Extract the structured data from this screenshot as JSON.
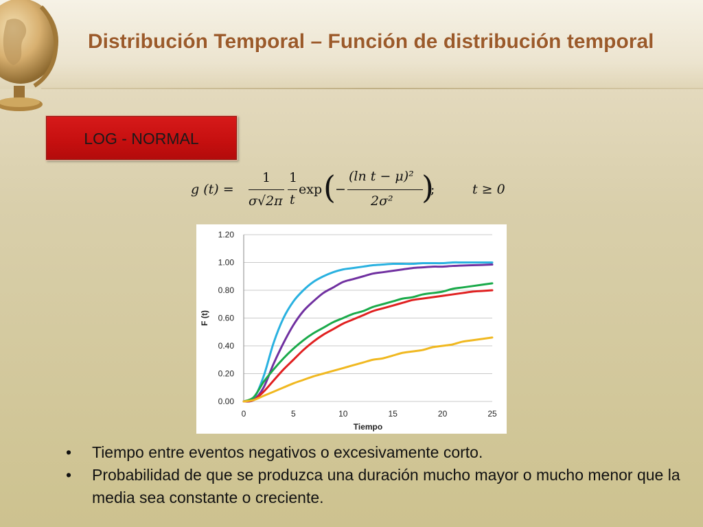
{
  "slide": {
    "title": "Distribución Temporal – Función de distribución temporal",
    "badge_label": "LOG - NORMAL",
    "formula": {
      "lhs": "g (t) =",
      "frac1_num": "1",
      "frac1_den": "σ√2π",
      "frac2_num": "1",
      "frac2_den": "t",
      "exp_label": "exp",
      "exp_num": "(ln t − μ)²",
      "exp_den": "2σ²",
      "suffix": ";",
      "condition": "t ≥ 0"
    },
    "bullets": [
      "Tiempo entre eventos negativos o excesivamente corto.",
      "Probabilidad de que se produzca una duración mucho mayor o mucho menor que la media sea constante o creciente."
    ],
    "bullet_symbol": "•"
  },
  "colors": {
    "title": "#9b5a2a",
    "badge": "#c50f0f",
    "grid": "#c8c8c8"
  },
  "chart_data": {
    "type": "line",
    "xlabel": "Tiempo",
    "ylabel": "F (t)",
    "xlim": [
      0,
      25
    ],
    "ylim": [
      0,
      1.2
    ],
    "xticks": [
      0,
      5,
      10,
      15,
      20,
      25
    ],
    "yticks": [
      "0.00",
      "0.20",
      "0.40",
      "0.60",
      "0.80",
      "1.00",
      "1.20"
    ],
    "grid": "horizontal",
    "x": [
      0,
      1,
      2,
      3,
      4,
      5,
      6,
      7,
      8,
      9,
      10,
      11,
      12,
      13,
      14,
      15,
      16,
      17,
      18,
      19,
      20,
      21,
      22,
      23,
      24,
      25
    ],
    "series": [
      {
        "color": "#29b1e0",
        "values": [
          0.0,
          0.02,
          0.18,
          0.42,
          0.6,
          0.72,
          0.8,
          0.86,
          0.9,
          0.93,
          0.95,
          0.96,
          0.97,
          0.98,
          0.985,
          0.99,
          0.99,
          0.99,
          0.995,
          0.995,
          0.995,
          1.0,
          1.0,
          1.0,
          1.0,
          1.0
        ]
      },
      {
        "color": "#7030a0",
        "values": [
          0.0,
          0.01,
          0.1,
          0.27,
          0.42,
          0.55,
          0.65,
          0.72,
          0.78,
          0.82,
          0.86,
          0.88,
          0.9,
          0.92,
          0.93,
          0.94,
          0.95,
          0.96,
          0.965,
          0.97,
          0.97,
          0.975,
          0.978,
          0.98,
          0.982,
          0.985
        ]
      },
      {
        "color": "#1aaa4a",
        "values": [
          0.0,
          0.03,
          0.14,
          0.23,
          0.31,
          0.38,
          0.44,
          0.49,
          0.53,
          0.57,
          0.6,
          0.63,
          0.65,
          0.68,
          0.7,
          0.72,
          0.74,
          0.75,
          0.77,
          0.78,
          0.79,
          0.81,
          0.82,
          0.83,
          0.84,
          0.85
        ]
      },
      {
        "color": "#e02020",
        "values": [
          0.0,
          0.01,
          0.07,
          0.15,
          0.23,
          0.3,
          0.37,
          0.43,
          0.48,
          0.52,
          0.56,
          0.59,
          0.62,
          0.65,
          0.67,
          0.69,
          0.71,
          0.73,
          0.74,
          0.75,
          0.76,
          0.77,
          0.78,
          0.79,
          0.795,
          0.8
        ]
      },
      {
        "color": "#f0b820",
        "values": [
          0.0,
          0.01,
          0.04,
          0.07,
          0.1,
          0.13,
          0.155,
          0.18,
          0.2,
          0.22,
          0.24,
          0.26,
          0.28,
          0.3,
          0.31,
          0.33,
          0.35,
          0.36,
          0.37,
          0.39,
          0.4,
          0.41,
          0.43,
          0.44,
          0.45,
          0.46
        ]
      }
    ]
  }
}
